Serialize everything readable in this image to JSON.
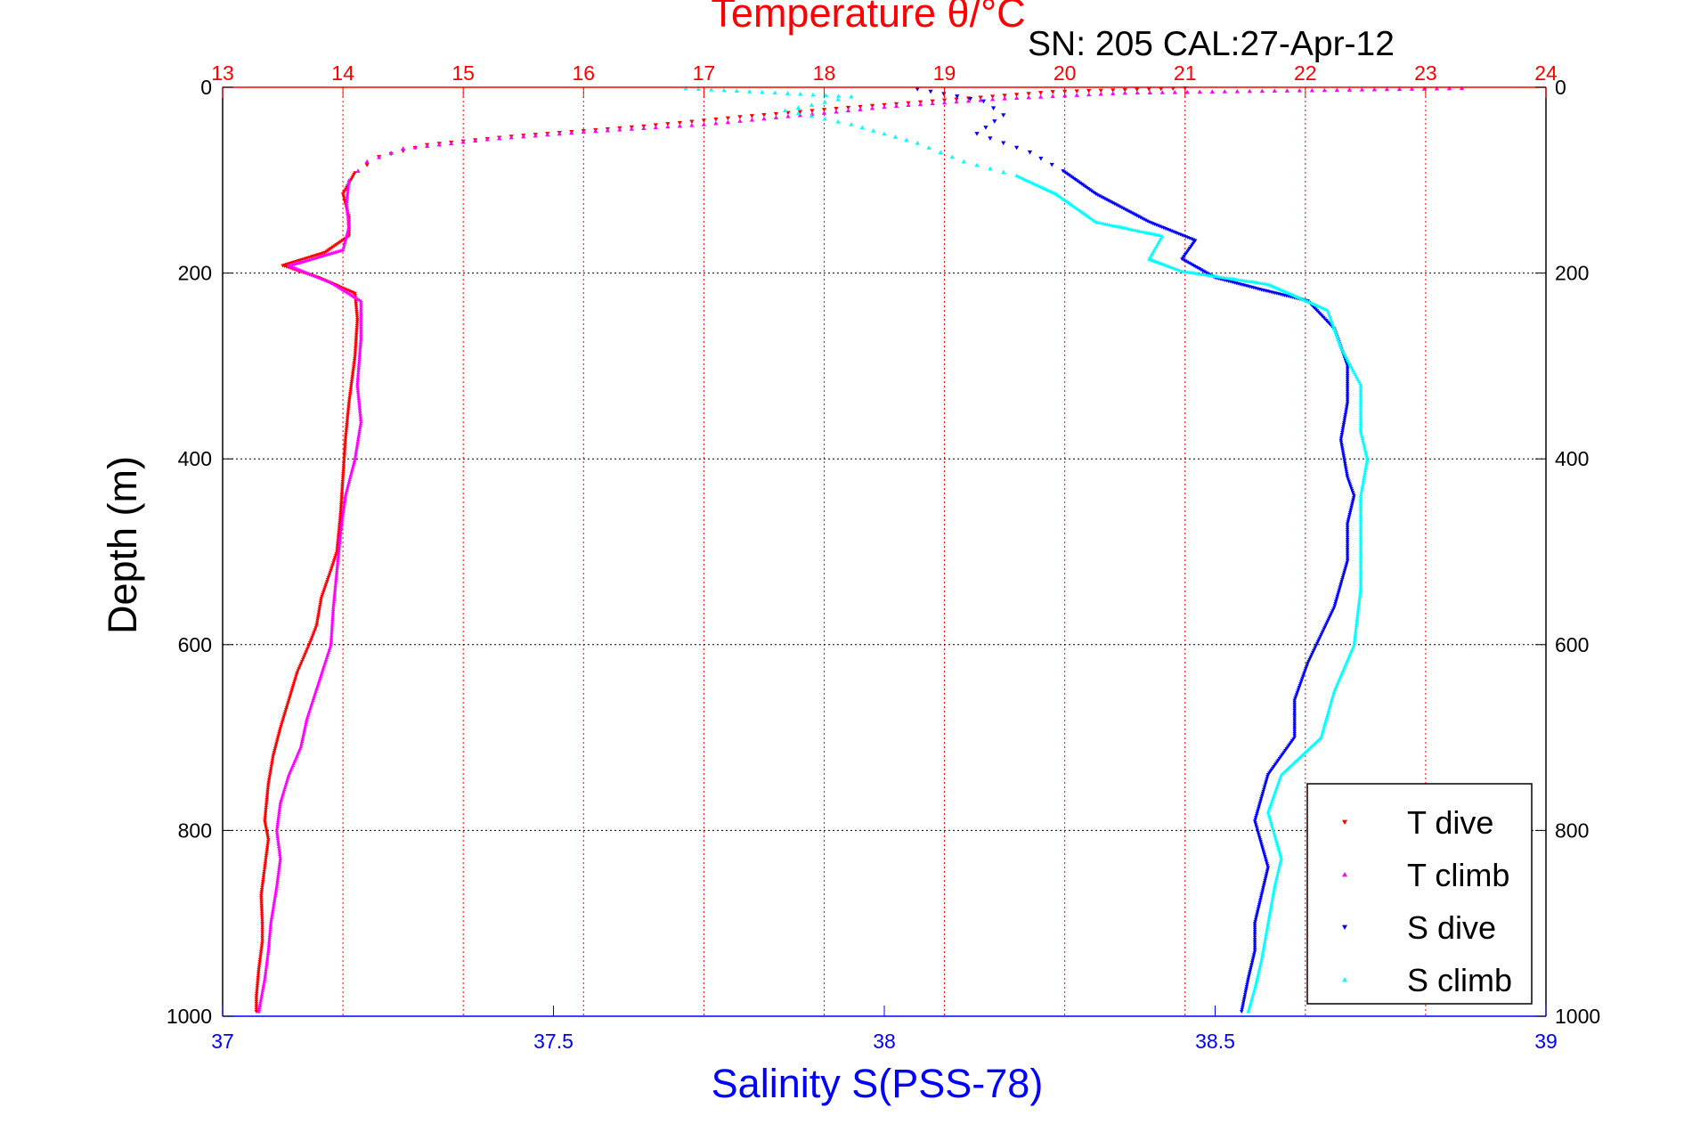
{
  "colors": {
    "temperature_axis": "#ff0000",
    "salinity_axis": "#0000ff",
    "depth_axis": "#000000",
    "t_dive": "#ff0000",
    "t_climb": "#ff00ff",
    "s_dive": "#0000ff",
    "s_climb": "#00ffff"
  },
  "chart_data": {
    "type": "scatter",
    "title": "Temperature θ/°C",
    "annotation": "SN: 205  CAL:27-Apr-12",
    "ylabel": "Depth (m)",
    "xlabel": "Salinity S(PSS-78)",
    "temperature_axis": {
      "label": "Temperature θ/°C",
      "lim": [
        13,
        24
      ],
      "ticks": [
        "13",
        "14",
        "15",
        "16",
        "17",
        "18",
        "19",
        "20",
        "21",
        "22",
        "23",
        "24"
      ]
    },
    "salinity_axis": {
      "label": "Salinity S(PSS-78)",
      "lim": [
        37,
        39
      ],
      "ticks": [
        "37",
        "37.5",
        "38",
        "38.5",
        "39"
      ]
    },
    "depth_axis": {
      "label": "Depth (m)",
      "lim": [
        0,
        1000
      ],
      "reversed": true,
      "ticks": [
        "0",
        "200",
        "400",
        "600",
        "800",
        "1000"
      ]
    },
    "grid": true,
    "legend_position": "bottom-right",
    "series": [
      {
        "name": "T dive",
        "axis": "temperature",
        "marker": "triangle-down",
        "points": [
          [
            21.0,
            1
          ],
          [
            19.9,
            5
          ],
          [
            19.2,
            12
          ],
          [
            18.2,
            22
          ],
          [
            17.3,
            32
          ],
          [
            16.5,
            42
          ],
          [
            15.4,
            53
          ],
          [
            14.7,
            62
          ],
          [
            14.3,
            75
          ],
          [
            14.1,
            92
          ],
          [
            14.0,
            115
          ],
          [
            14.05,
            140
          ],
          [
            14.05,
            160
          ],
          [
            13.85,
            178
          ],
          [
            13.5,
            192
          ],
          [
            13.8,
            205
          ],
          [
            14.1,
            222
          ],
          [
            14.12,
            250
          ],
          [
            14.1,
            290
          ],
          [
            14.05,
            340
          ],
          [
            14.02,
            380
          ],
          [
            14.0,
            420
          ],
          [
            13.98,
            460
          ],
          [
            13.95,
            500
          ],
          [
            13.9,
            520
          ],
          [
            13.82,
            550
          ],
          [
            13.78,
            580
          ],
          [
            13.72,
            600
          ],
          [
            13.62,
            630
          ],
          [
            13.55,
            660
          ],
          [
            13.48,
            690
          ],
          [
            13.42,
            720
          ],
          [
            13.38,
            750
          ],
          [
            13.35,
            790
          ],
          [
            13.38,
            810
          ],
          [
            13.35,
            840
          ],
          [
            13.32,
            870
          ],
          [
            13.33,
            900
          ],
          [
            13.33,
            920
          ],
          [
            13.3,
            950
          ],
          [
            13.28,
            980
          ],
          [
            13.28,
            995
          ]
        ]
      },
      {
        "name": "T climb",
        "axis": "temperature",
        "marker": "triangle-up",
        "points": [
          [
            23.3,
            1
          ],
          [
            20.5,
            6
          ],
          [
            19.5,
            12
          ],
          [
            18.6,
            20
          ],
          [
            17.8,
            30
          ],
          [
            17.0,
            40
          ],
          [
            16.0,
            48
          ],
          [
            15.2,
            56
          ],
          [
            14.5,
            66
          ],
          [
            14.2,
            80
          ],
          [
            14.05,
            100
          ],
          [
            14.03,
            125
          ],
          [
            14.05,
            150
          ],
          [
            14.0,
            175
          ],
          [
            13.55,
            192
          ],
          [
            13.9,
            210
          ],
          [
            14.15,
            230
          ],
          [
            14.15,
            270
          ],
          [
            14.12,
            320
          ],
          [
            14.15,
            360
          ],
          [
            14.1,
            400
          ],
          [
            14.02,
            440
          ],
          [
            13.98,
            480
          ],
          [
            13.95,
            520
          ],
          [
            13.92,
            560
          ],
          [
            13.9,
            600
          ],
          [
            13.8,
            640
          ],
          [
            13.7,
            680
          ],
          [
            13.65,
            710
          ],
          [
            13.55,
            740
          ],
          [
            13.48,
            770
          ],
          [
            13.45,
            800
          ],
          [
            13.48,
            830
          ],
          [
            13.45,
            860
          ],
          [
            13.4,
            900
          ],
          [
            13.38,
            930
          ],
          [
            13.35,
            960
          ],
          [
            13.3,
            995
          ]
        ]
      },
      {
        "name": "S dive",
        "axis": "salinity",
        "marker": "triangle-down",
        "points": [
          [
            38.05,
            2
          ],
          [
            38.15,
            15
          ],
          [
            38.18,
            30
          ],
          [
            38.14,
            50
          ],
          [
            38.22,
            70
          ],
          [
            38.27,
            90
          ],
          [
            38.32,
            115
          ],
          [
            38.4,
            145
          ],
          [
            38.47,
            165
          ],
          [
            38.45,
            185
          ],
          [
            38.5,
            205
          ],
          [
            38.57,
            218
          ],
          [
            38.64,
            230
          ],
          [
            38.68,
            260
          ],
          [
            38.7,
            300
          ],
          [
            38.7,
            340
          ],
          [
            38.69,
            380
          ],
          [
            38.7,
            420
          ],
          [
            38.71,
            440
          ],
          [
            38.7,
            470
          ],
          [
            38.7,
            510
          ],
          [
            38.68,
            560
          ],
          [
            38.64,
            620
          ],
          [
            38.62,
            660
          ],
          [
            38.62,
            700
          ],
          [
            38.58,
            740
          ],
          [
            38.56,
            790
          ],
          [
            38.58,
            840
          ],
          [
            38.57,
            870
          ],
          [
            38.56,
            900
          ],
          [
            38.56,
            930
          ],
          [
            38.55,
            960
          ],
          [
            38.54,
            995
          ]
        ]
      },
      {
        "name": "S climb",
        "axis": "salinity",
        "marker": "triangle-up",
        "points": [
          [
            37.7,
            1
          ],
          [
            37.95,
            10
          ],
          [
            37.85,
            25
          ],
          [
            37.95,
            40
          ],
          [
            38.05,
            60
          ],
          [
            38.12,
            80
          ],
          [
            38.2,
            95
          ],
          [
            38.26,
            115
          ],
          [
            38.32,
            145
          ],
          [
            38.42,
            160
          ],
          [
            38.4,
            185
          ],
          [
            38.45,
            198
          ],
          [
            38.58,
            212
          ],
          [
            38.67,
            240
          ],
          [
            38.69,
            280
          ],
          [
            38.72,
            320
          ],
          [
            38.72,
            370
          ],
          [
            38.73,
            400
          ],
          [
            38.72,
            440
          ],
          [
            38.72,
            480
          ],
          [
            38.72,
            540
          ],
          [
            38.71,
            600
          ],
          [
            38.68,
            650
          ],
          [
            38.66,
            700
          ],
          [
            38.6,
            740
          ],
          [
            38.58,
            780
          ],
          [
            38.6,
            830
          ],
          [
            38.59,
            860
          ],
          [
            38.58,
            900
          ],
          [
            38.57,
            940
          ],
          [
            38.56,
            970
          ],
          [
            38.55,
            995
          ]
        ]
      }
    ]
  }
}
